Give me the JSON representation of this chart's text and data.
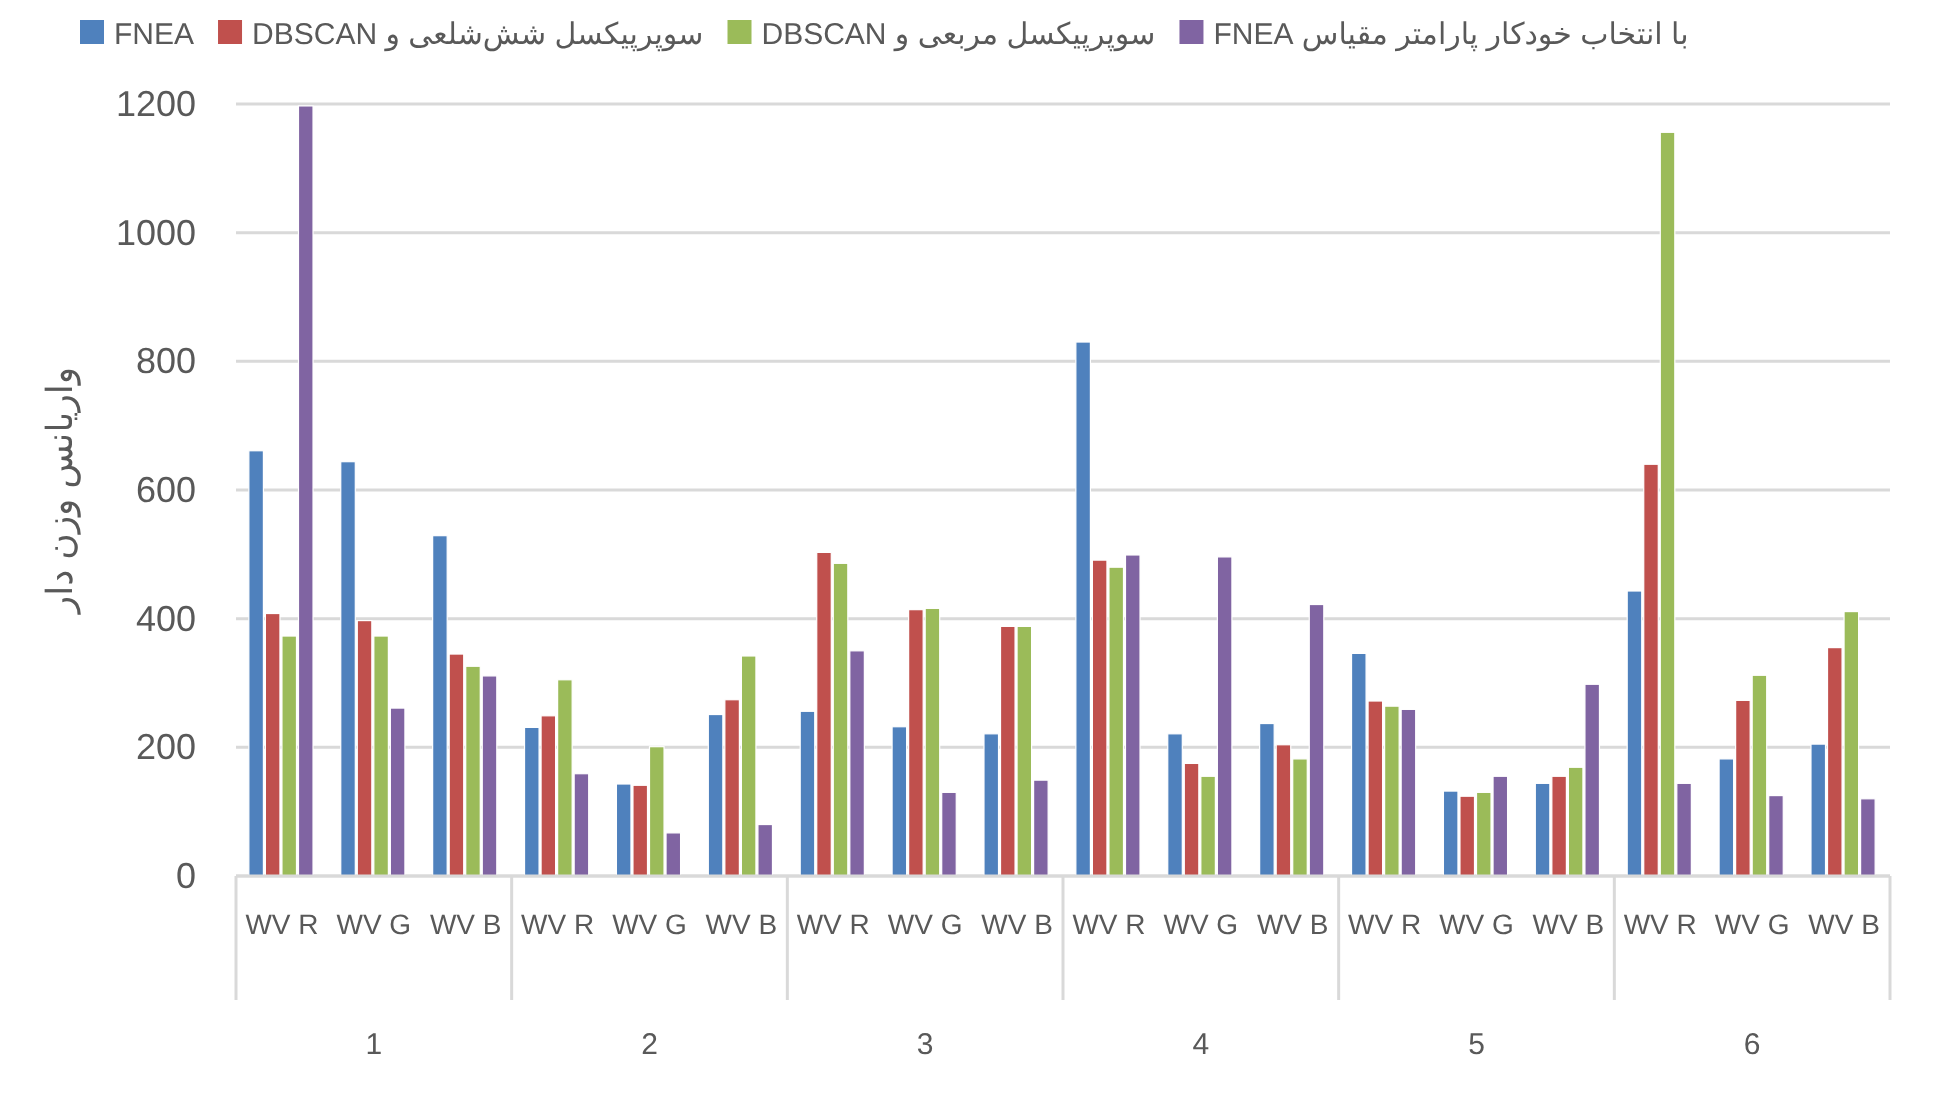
{
  "chart_data": {
    "type": "bar",
    "ylabel": "واریانس وزن دار",
    "categories": [
      "WV R",
      "WV G",
      "WV B",
      "WV R",
      "WV G",
      "WV B",
      "WV R",
      "WV G",
      "WV B",
      "WV R",
      "WV G",
      "WV B",
      "WV R",
      "WV G",
      "WV B",
      "WV R",
      "WV G",
      "WV B"
    ],
    "annotations": [
      "1",
      "2",
      "3",
      "4",
      "5",
      "6"
    ],
    "series": [
      {
        "name": "FNEA",
        "color": "#4f81bd",
        "values": [
          661,
          644,
          529,
          231,
          143,
          251,
          256,
          232,
          221,
          830,
          221,
          237,
          346,
          132,
          144,
          443,
          182,
          205
        ]
      },
      {
        "name": "سوپرپیکسل شش‌شلعی و DBSCAN",
        "color": "#c0504d",
        "values": [
          408,
          397,
          345,
          249,
          141,
          274,
          503,
          414,
          388,
          491,
          175,
          204,
          272,
          124,
          155,
          640,
          273,
          355
        ]
      },
      {
        "name": "سوپرپیکسل مربعی و DBSCAN",
        "color": "#9bbb59",
        "values": [
          373,
          373,
          326,
          305,
          201,
          342,
          486,
          416,
          388,
          480,
          155,
          182,
          264,
          130,
          169,
          1156,
          312,
          411
        ]
      },
      {
        "name": "با انتخاب خودکار پارامتر مقیاس FNEA",
        "color": "#8064a2",
        "values": [
          1197,
          261,
          311,
          159,
          67,
          80,
          350,
          130,
          149,
          499,
          496,
          422,
          259,
          155,
          298,
          144,
          125,
          120
        ]
      }
    ],
    "ylim": [
      0,
      1200
    ],
    "yticks": [
      0,
      200,
      400,
      600,
      800,
      1000,
      1200
    ],
    "grid": "y",
    "legend": "top"
  }
}
